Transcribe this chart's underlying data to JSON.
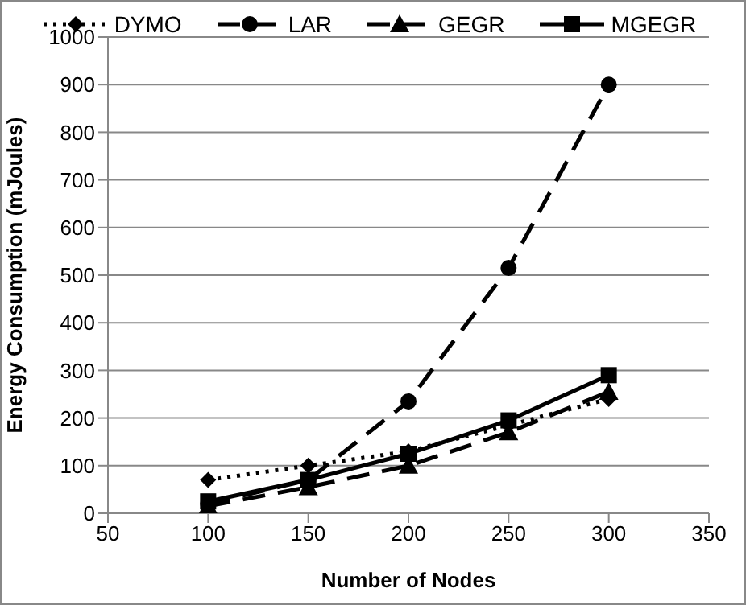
{
  "chart_data": {
    "type": "line",
    "xlabel": "Number of Nodes",
    "ylabel": "Energy Consumption (mJoules)",
    "x": [
      100,
      150,
      200,
      250,
      300
    ],
    "xlim": [
      50,
      350
    ],
    "xticks": [
      50,
      100,
      150,
      200,
      250,
      300,
      350
    ],
    "ylim": [
      0,
      1000
    ],
    "yticks": [
      0,
      100,
      200,
      300,
      400,
      500,
      600,
      700,
      800,
      900,
      1000
    ],
    "grid": "y",
    "legend": "top",
    "series": [
      {
        "name": "DYMO",
        "color": "#000000",
        "marker": "diamond",
        "line_style": "dotted",
        "values": [
          70,
          100,
          130,
          185,
          240
        ]
      },
      {
        "name": "LAR",
        "color": "#000000",
        "marker": "circle",
        "line_style": "dashed",
        "values": [
          20,
          70,
          235,
          515,
          900
        ]
      },
      {
        "name": "GEGR",
        "color": "#000000",
        "marker": "triangle",
        "line_style": "dashed",
        "values": [
          15,
          55,
          100,
          170,
          255
        ]
      },
      {
        "name": "MGEGR",
        "color": "#000000",
        "marker": "square",
        "line_style": "solid",
        "values": [
          25,
          70,
          125,
          195,
          290
        ]
      }
    ]
  }
}
